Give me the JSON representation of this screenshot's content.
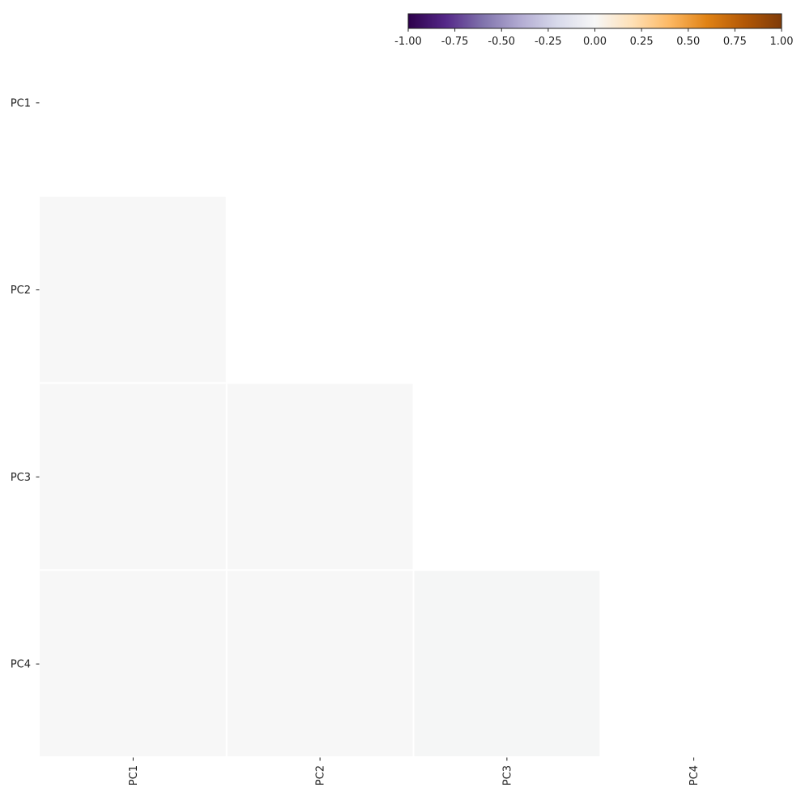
{
  "chart_data": {
    "type": "heatmap",
    "title": "",
    "xlabel": "",
    "ylabel": "",
    "row_labels": [
      "PC1",
      "PC2",
      "PC3",
      "PC4"
    ],
    "col_labels": [
      "PC1",
      "PC2",
      "PC3",
      "PC4"
    ],
    "mask": "upper triangle including diagonal",
    "cells": [
      {
        "row": "PC2",
        "col": "PC1",
        "value": 0.0
      },
      {
        "row": "PC3",
        "col": "PC1",
        "value": 0.0
      },
      {
        "row": "PC3",
        "col": "PC2",
        "value": 0.0
      },
      {
        "row": "PC4",
        "col": "PC1",
        "value": 0.0
      },
      {
        "row": "PC4",
        "col": "PC2",
        "value": 0.0
      },
      {
        "row": "PC4",
        "col": "PC3",
        "value": -0.01
      }
    ],
    "colorbar": {
      "colormap": "PuOr_r",
      "orientation": "horizontal",
      "placement": "top-right",
      "vmin": -1.0,
      "vmax": 1.0,
      "ticks": [
        "-1.00",
        "-0.75",
        "-0.50",
        "-0.25",
        "0.00",
        "0.25",
        "0.50",
        "0.75",
        "1.00"
      ],
      "stops": [
        "#2d004b",
        "#542788",
        "#8073ac",
        "#b2abd2",
        "#d8daeb",
        "#f7f7f7",
        "#fee0b6",
        "#fdb863",
        "#e08214",
        "#b35806",
        "#7f3b08"
      ]
    },
    "grid": false
  }
}
